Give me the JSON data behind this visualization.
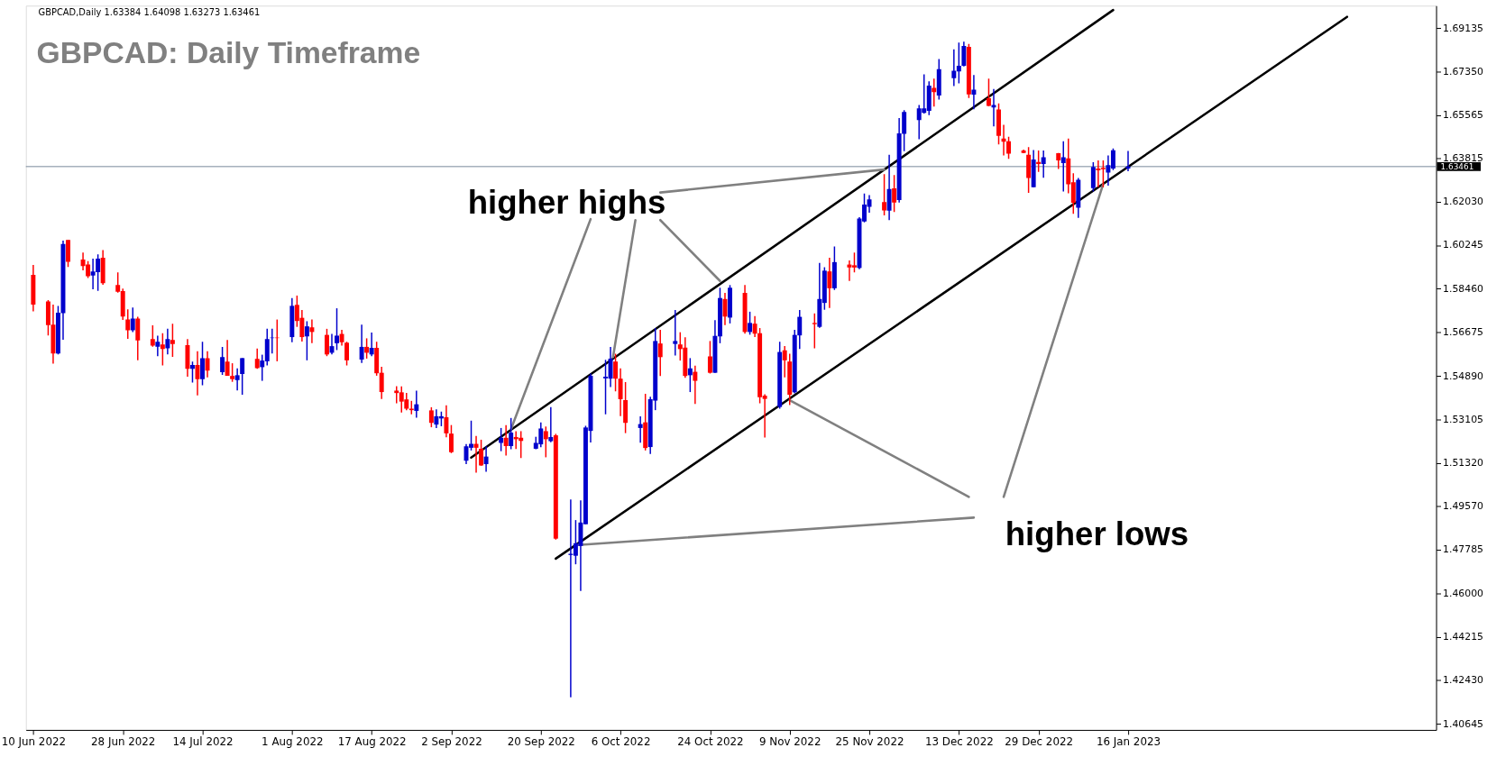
{
  "chart_data": {
    "type": "candlestick",
    "title": "GBPCAD: Daily Timeframe",
    "annotations": [
      "GBPCAD,Daily  1.63384 1.64098 1.63273 1.63461",
      "higher highs",
      "higher lows"
    ],
    "x": [
      "2022-06-10",
      "2022-06-13",
      "2022-06-14",
      "2022-06-15",
      "2022-06-16",
      "2022-06-17",
      "2022-06-20",
      "2022-06-21",
      "2022-06-22",
      "2022-06-23",
      "2022-06-24",
      "2022-06-27",
      "2022-06-28",
      "2022-06-29",
      "2022-06-30",
      "2022-07-01",
      "2022-07-04",
      "2022-07-05",
      "2022-07-06",
      "2022-07-07",
      "2022-07-08",
      "2022-07-11",
      "2022-07-12",
      "2022-07-13",
      "2022-07-14",
      "2022-07-15",
      "2022-07-18",
      "2022-07-19",
      "2022-07-20",
      "2022-07-21",
      "2022-07-22",
      "2022-07-25",
      "2022-07-26",
      "2022-07-27",
      "2022-07-28",
      "2022-07-29",
      "2022-08-01",
      "2022-08-02",
      "2022-08-03",
      "2022-08-04",
      "2022-08-05",
      "2022-08-08",
      "2022-08-09",
      "2022-08-10",
      "2022-08-11",
      "2022-08-12",
      "2022-08-15",
      "2022-08-16",
      "2022-08-17",
      "2022-08-18",
      "2022-08-19",
      "2022-08-22",
      "2022-08-23",
      "2022-08-24",
      "2022-08-25",
      "2022-08-26",
      "2022-08-29",
      "2022-08-30",
      "2022-08-31",
      "2022-09-01",
      "2022-09-02",
      "2022-09-05",
      "2022-09-06",
      "2022-09-07",
      "2022-09-08",
      "2022-09-09",
      "2022-09-12",
      "2022-09-13",
      "2022-09-14",
      "2022-09-15",
      "2022-09-16",
      "2022-09-19",
      "2022-09-20",
      "2022-09-21",
      "2022-09-22",
      "2022-09-23",
      "2022-09-26",
      "2022-09-27",
      "2022-09-28",
      "2022-09-29",
      "2022-09-30",
      "2022-10-03",
      "2022-10-04",
      "2022-10-05",
      "2022-10-06",
      "2022-10-07",
      "2022-10-10",
      "2022-10-11",
      "2022-10-12",
      "2022-10-13",
      "2022-10-14",
      "2022-10-17",
      "2022-10-18",
      "2022-10-19",
      "2022-10-20",
      "2022-10-21",
      "2022-10-24",
      "2022-10-25",
      "2022-10-26",
      "2022-10-27",
      "2022-10-28",
      "2022-10-31",
      "2022-11-01",
      "2022-11-02",
      "2022-11-03",
      "2022-11-04",
      "2022-11-07",
      "2022-11-08",
      "2022-11-09",
      "2022-11-10",
      "2022-11-11",
      "2022-11-14",
      "2022-11-15",
      "2022-11-16",
      "2022-11-17",
      "2022-11-18",
      "2022-11-21",
      "2022-11-22",
      "2022-11-23",
      "2022-11-24",
      "2022-11-25",
      "2022-11-28",
      "2022-11-29",
      "2022-11-30",
      "2022-12-01",
      "2022-12-02",
      "2022-12-05",
      "2022-12-06",
      "2022-12-07",
      "2022-12-08",
      "2022-12-09",
      "2022-12-12",
      "2022-12-13",
      "2022-12-14",
      "2022-12-15",
      "2022-12-16",
      "2022-12-19",
      "2022-12-20",
      "2022-12-21",
      "2022-12-22",
      "2022-12-23",
      "2022-12-26",
      "2022-12-27",
      "2022-12-28",
      "2022-12-29",
      "2022-12-30",
      "2023-01-02",
      "2023-01-03",
      "2023-01-04",
      "2023-01-05",
      "2023-01-06",
      "2023-01-09",
      "2023-01-10",
      "2023-01-11",
      "2023-01-12",
      "2023-01-13",
      "2023-01-16"
    ],
    "ohlc": [
      [
        1.5903,
        1.5943,
        1.5753,
        1.5781
      ],
      [
        1.5794,
        1.58,
        1.5655,
        1.5697
      ],
      [
        1.5699,
        1.5781,
        1.5539,
        1.5581
      ],
      [
        1.5581,
        1.5776,
        1.5577,
        1.5748
      ],
      [
        1.5746,
        1.6043,
        1.5637,
        1.6029
      ],
      [
        1.6046,
        1.6046,
        1.5935,
        1.5956
      ],
      [
        1.5966,
        1.5994,
        1.5921,
        1.5939
      ],
      [
        1.5945,
        1.5959,
        1.589,
        1.5897
      ],
      [
        1.59,
        1.5969,
        1.5844,
        1.5917
      ],
      [
        1.5914,
        1.5987,
        1.5837,
        1.5969
      ],
      [
        1.5973,
        1.6004,
        1.5862,
        1.5869
      ],
      [
        1.5861,
        1.5913,
        1.583,
        1.5834
      ],
      [
        1.5836,
        1.5847,
        1.5718,
        1.5732
      ],
      [
        1.572,
        1.5762,
        1.5641,
        1.5676
      ],
      [
        1.5676,
        1.5769,
        1.5669,
        1.5724
      ],
      [
        1.5724,
        1.5731,
        1.5553,
        1.5634
      ],
      [
        1.564,
        1.5696,
        1.5609,
        1.5613
      ],
      [
        1.5609,
        1.5654,
        1.557,
        1.5629
      ],
      [
        1.5618,
        1.5664,
        1.5532,
        1.5599
      ],
      [
        1.5602,
        1.5682,
        1.5577,
        1.564
      ],
      [
        1.5636,
        1.5703,
        1.5567,
        1.562
      ],
      [
        1.5615,
        1.564,
        1.5486,
        1.5518
      ],
      [
        1.5518,
        1.5548,
        1.5462,
        1.5534
      ],
      [
        1.5534,
        1.559,
        1.5409,
        1.5476
      ],
      [
        1.5476,
        1.5629,
        1.5451,
        1.5562
      ],
      [
        1.5562,
        1.559,
        1.5483,
        1.5511
      ],
      [
        1.5504,
        1.5608,
        1.5493,
        1.5566
      ],
      [
        1.5548,
        1.5636,
        1.549,
        1.549
      ],
      [
        1.5489,
        1.5541,
        1.5465,
        1.5476
      ],
      [
        1.5472,
        1.552,
        1.543,
        1.5492
      ],
      [
        1.5497,
        1.5562,
        1.5412,
        1.5562
      ],
      [
        1.5559,
        1.5601,
        1.5518,
        1.5521
      ],
      [
        1.5525,
        1.5576,
        1.5469,
        1.5552
      ],
      [
        1.5549,
        1.5682,
        1.5532,
        1.564
      ],
      [
        1.5644,
        1.5682,
        1.5581,
        1.5646
      ],
      [
        1.5646,
        1.572,
        1.5549,
        1.5644
      ],
      [
        1.5648,
        1.5808,
        1.5627,
        1.5776
      ],
      [
        1.578,
        1.5818,
        1.569,
        1.5714
      ],
      [
        1.5727,
        1.5759,
        1.563,
        1.5648
      ],
      [
        1.5651,
        1.5713,
        1.5553,
        1.5692
      ],
      [
        1.5688,
        1.572,
        1.5623,
        1.5669
      ],
      [
        1.5657,
        1.5682,
        1.557,
        1.5577
      ],
      [
        1.5584,
        1.5661,
        1.5577,
        1.5611
      ],
      [
        1.5623,
        1.5766,
        1.5595,
        1.5654
      ],
      [
        1.5661,
        1.5678,
        1.5613,
        1.5627
      ],
      [
        1.5625,
        1.5629,
        1.5532,
        1.5553
      ],
      [
        1.5556,
        1.5699,
        1.5542,
        1.5608
      ],
      [
        1.5608,
        1.5643,
        1.556,
        1.5584
      ],
      [
        1.5577,
        1.5667,
        1.557,
        1.5604
      ],
      [
        1.5604,
        1.5629,
        1.549,
        1.55
      ],
      [
        1.5502,
        1.5527,
        1.5395,
        1.5423
      ],
      [
        1.5429,
        1.5447,
        1.5377,
        1.5419
      ],
      [
        1.5422,
        1.5446,
        1.5339,
        1.5384
      ],
      [
        1.5393,
        1.542,
        1.5349,
        1.5355
      ],
      [
        1.5355,
        1.5387,
        1.5332,
        1.5349
      ],
      [
        1.5346,
        1.5429,
        1.5318,
        1.5373
      ],
      [
        1.5348,
        1.5361,
        1.5279,
        1.5297
      ],
      [
        1.529,
        1.5352,
        1.5276,
        1.5324
      ],
      [
        1.5315,
        1.5343,
        1.5283,
        1.5324
      ],
      [
        1.532,
        1.5369,
        1.5238,
        1.5254
      ],
      [
        1.5253,
        1.5288,
        1.5173,
        1.5177
      ],
      [
        1.5142,
        1.521,
        1.5128,
        1.5201
      ],
      [
        1.5195,
        1.5306,
        1.5184,
        1.5211
      ],
      [
        1.5211,
        1.5243,
        1.5093,
        1.5195
      ],
      [
        1.5191,
        1.5228,
        1.5121,
        1.5123
      ],
      [
        1.5128,
        1.5201,
        1.5097,
        1.5159
      ],
      [
        1.5215,
        1.5276,
        1.5181,
        1.5236
      ],
      [
        1.5236,
        1.5288,
        1.5163,
        1.5202
      ],
      [
        1.5202,
        1.5317,
        1.5189,
        1.5257
      ],
      [
        1.5239,
        1.5263,
        1.519,
        1.523
      ],
      [
        1.5236,
        1.5263,
        1.5153,
        1.5223
      ],
      [
        1.5191,
        1.524,
        1.5189,
        1.5215
      ],
      [
        1.5209,
        1.5299,
        1.5197,
        1.5274
      ],
      [
        1.5263,
        1.5282,
        1.5156,
        1.523
      ],
      [
        1.5222,
        1.5361,
        1.5218,
        1.5239
      ],
      [
        1.5246,
        1.5252,
        1.4819,
        1.4823
      ],
      [
        1.4756,
        1.4983,
        1.4174,
        1.4761
      ],
      [
        1.4753,
        1.4899,
        1.4718,
        1.4804
      ],
      [
        1.4793,
        1.498,
        1.4609,
        1.4889
      ],
      [
        1.4882,
        1.5285,
        1.4882,
        1.5278
      ],
      [
        1.5264,
        1.5499,
        1.5217,
        1.549
      ],
      [
        1.5479,
        1.5555,
        1.5332,
        1.5486
      ],
      [
        1.5478,
        1.5608,
        1.5444,
        1.556
      ],
      [
        1.5548,
        1.558,
        1.5426,
        1.5478
      ],
      [
        1.5478,
        1.552,
        1.5325,
        1.5394
      ],
      [
        1.539,
        1.5464,
        1.5255,
        1.5297
      ],
      [
        1.5276,
        1.5324,
        1.5216,
        1.5292
      ],
      [
        1.5299,
        1.5416,
        1.5184,
        1.5194
      ],
      [
        1.5198,
        1.5404,
        1.517,
        1.5394
      ],
      [
        1.5388,
        1.5685,
        1.5349,
        1.5632
      ],
      [
        1.5622,
        1.5678,
        1.5489,
        1.5566
      ],
      [
        1.562,
        1.5759,
        1.5573,
        1.5632
      ],
      [
        1.5618,
        1.5668,
        1.5552,
        1.5599
      ],
      [
        1.5605,
        1.5647,
        1.5481,
        1.5489
      ],
      [
        1.5492,
        1.5562,
        1.5423,
        1.552
      ],
      [
        1.5506,
        1.5531,
        1.5374,
        1.5469
      ],
      [
        1.5569,
        1.5632,
        1.5499,
        1.5502
      ],
      [
        1.5502,
        1.5717,
        1.5502,
        1.5653
      ],
      [
        1.5651,
        1.585,
        1.5623,
        1.5808
      ],
      [
        1.5804,
        1.5829,
        1.5697,
        1.5732
      ],
      [
        1.5728,
        1.5861,
        1.5704,
        1.585
      ],
      [
        1.5829,
        1.5861,
        1.5662,
        1.5669
      ],
      [
        1.5669,
        1.5752,
        1.5658,
        1.5706
      ],
      [
        1.5703,
        1.5734,
        1.5648,
        1.5662
      ],
      [
        1.5664,
        1.5685,
        1.5377,
        1.5402
      ],
      [
        1.5408,
        1.5414,
        1.5237,
        1.5395
      ],
      [
        1.5362,
        1.5629,
        1.5355,
        1.5587
      ],
      [
        1.5594,
        1.5611,
        1.5483,
        1.5553
      ],
      [
        1.5548,
        1.558,
        1.537,
        1.5412
      ],
      [
        1.5422,
        1.5678,
        1.5418,
        1.5657
      ],
      [
        1.5655,
        1.5759,
        1.5599,
        1.5731
      ],
      [
        1.5706,
        1.5745,
        1.5602,
        1.5701
      ],
      [
        1.569,
        1.5952,
        1.5686,
        1.5804
      ],
      [
        1.5788,
        1.5934,
        1.576,
        1.592
      ],
      [
        1.5917,
        1.5973,
        1.5767,
        1.5848
      ],
      [
        1.5848,
        1.6019,
        1.5841,
        1.5955
      ],
      [
        1.5945,
        1.5962,
        1.5878,
        1.5933
      ],
      [
        1.5942,
        1.5994,
        1.5913,
        1.5933
      ],
      [
        1.5931,
        1.6139,
        1.5926,
        1.6133
      ],
      [
        1.6121,
        1.6236,
        1.6118,
        1.6191
      ],
      [
        1.6181,
        1.6229,
        1.6157,
        1.6212
      ],
      [
        1.6201,
        1.6315,
        1.6146,
        1.6167
      ],
      [
        1.6166,
        1.6394,
        1.6127,
        1.6254
      ],
      [
        1.6257,
        1.6311,
        1.616,
        1.6199
      ],
      [
        1.6209,
        1.6545,
        1.6199,
        1.6482
      ],
      [
        1.648,
        1.6577,
        1.6409,
        1.657
      ],
      [
        1.6536,
        1.6598,
        1.6458,
        1.6584
      ],
      [
        1.6566,
        1.6724,
        1.6563,
        1.6584
      ],
      [
        1.6574,
        1.6695,
        1.6557,
        1.6678
      ],
      [
        1.6668,
        1.6706,
        1.6592,
        1.6651
      ],
      [
        1.6637,
        1.6786,
        1.662,
        1.6745
      ],
      [
        1.6708,
        1.6826,
        1.6676,
        1.6738
      ],
      [
        1.6736,
        1.6854,
        1.6687,
        1.6759
      ],
      [
        1.6759,
        1.6857,
        1.6756,
        1.684
      ],
      [
        1.6836,
        1.6848,
        1.6627,
        1.6642
      ],
      [
        1.6641,
        1.6721,
        1.6581,
        1.6661
      ],
      [
        1.6626,
        1.6706,
        1.6593,
        1.6595
      ],
      [
        1.6588,
        1.6664,
        1.6511,
        1.6598
      ],
      [
        1.658,
        1.6605,
        1.6437,
        1.6472
      ],
      [
        1.6461,
        1.6517,
        1.6392,
        1.6448
      ],
      [
        1.645,
        1.6468,
        1.6378,
        1.6399
      ],
      [
        1.6412,
        1.6416,
        1.6401,
        1.6402
      ],
      [
        1.6394,
        1.6426,
        1.6239,
        1.6299
      ],
      [
        1.6262,
        1.6414,
        1.6262,
        1.6375
      ],
      [
        1.6365,
        1.6412,
        1.6324,
        1.6357
      ],
      [
        1.6357,
        1.6412,
        1.63,
        1.6384
      ],
      [
        1.6401,
        1.6402,
        1.6336,
        1.6371
      ],
      [
        1.636,
        1.645,
        1.6244,
        1.6384
      ],
      [
        1.638,
        1.6461,
        1.6237,
        1.6274
      ],
      [
        1.6282,
        1.6319,
        1.6153,
        1.6198
      ],
      [
        1.6178,
        1.6299,
        1.6136,
        1.6292
      ],
      [
        1.6258,
        1.6364,
        1.6244,
        1.6345
      ],
      [
        1.6338,
        1.6371,
        1.6262,
        1.6331
      ],
      [
        1.6341,
        1.6371,
        1.6262,
        1.6335
      ],
      [
        1.6322,
        1.6392,
        1.6268,
        1.6352
      ],
      [
        1.6338,
        1.642,
        1.6332,
        1.6413
      ],
      [
        1.63384,
        1.64098,
        1.63273,
        1.63461
      ]
    ],
    "colors": [
      "#ff0000",
      "#ff0000",
      "#ff0000",
      "#0000cc",
      "#0000cc",
      "#ff0000",
      "#ff0000",
      "#ff0000",
      "#0000cc",
      "#0000cc",
      "#ff0000",
      "#ff0000",
      "#ff0000",
      "#ff0000",
      "#0000cc",
      "#ff0000",
      "#ff0000",
      "#0000cc",
      "#ff0000",
      "#0000cc",
      "#ff0000",
      "#ff0000",
      "#0000cc",
      "#ff0000",
      "#0000cc",
      "#ff0000",
      "#0000cc",
      "#ff0000",
      "#ff0000",
      "#0000cc",
      "#0000cc",
      "#ff0000",
      "#0000cc",
      "#0000cc",
      "#0000cc",
      "#ff0000",
      "#0000cc",
      "#ff0000",
      "#ff0000",
      "#0000cc",
      "#ff0000",
      "#ff0000",
      "#0000cc",
      "#0000cc",
      "#ff0000",
      "#ff0000",
      "#0000cc",
      "#ff0000",
      "#0000cc",
      "#ff0000",
      "#ff0000",
      "#ff0000",
      "#ff0000",
      "#ff0000",
      "#ff0000",
      "#0000cc",
      "#ff0000",
      "#0000cc",
      "#0000cc",
      "#ff0000",
      "#ff0000",
      "#0000cc",
      "#0000cc",
      "#ff0000",
      "#ff0000",
      "#0000cc",
      "#0000cc",
      "#ff0000",
      "#0000cc",
      "#ff0000",
      "#ff0000",
      "#0000cc",
      "#0000cc",
      "#ff0000",
      "#0000cc",
      "#ff0000",
      "#0000cc",
      "#0000cc",
      "#0000cc",
      "#0000cc",
      "#0000cc",
      "#0000cc",
      "#0000cc",
      "#ff0000",
      "#ff0000",
      "#ff0000",
      "#0000cc",
      "#ff0000",
      "#0000cc",
      "#0000cc",
      "#ff0000",
      "#0000cc",
      "#ff0000",
      "#ff0000",
      "#0000cc",
      "#ff0000",
      "#ff0000",
      "#0000cc",
      "#0000cc",
      "#ff0000",
      "#0000cc",
      "#ff0000",
      "#0000cc",
      "#ff0000",
      "#ff0000",
      "#ff0000",
      "#0000cc",
      "#ff0000",
      "#ff0000",
      "#0000cc",
      "#0000cc",
      "#ff0000",
      "#0000cc",
      "#0000cc",
      "#ff0000",
      "#0000cc",
      "#ff0000",
      "#ff0000",
      "#0000cc",
      "#0000cc",
      "#0000cc",
      "#ff0000",
      "#0000cc",
      "#ff0000",
      "#0000cc",
      "#0000cc",
      "#0000cc",
      "#0000cc",
      "#0000cc",
      "#ff0000",
      "#0000cc",
      "#0000cc",
      "#0000cc",
      "#0000cc",
      "#ff0000",
      "#0000cc",
      "#ff0000",
      "#0000cc",
      "#ff0000",
      "#ff0000",
      "#ff0000",
      "#ff0000",
      "#ff0000",
      "#0000cc",
      "#ff0000",
      "#0000cc",
      "#ff0000",
      "#0000cc",
      "#ff0000",
      "#ff0000",
      "#0000cc",
      "#0000cc",
      "#ff0000",
      "#ff0000",
      "#0000cc",
      "#0000cc",
      "#0000cc"
    ],
    "series": [
      {
        "type": "line",
        "color": "#000000",
        "x": [
          "2022-09-06",
          "2023-01-13"
        ],
        "values": [
          1.5155,
          1.6987
        ]
      },
      {
        "type": "line",
        "color": "#000000",
        "x": [
          "2022-09-23",
          "2023-03-01"
        ],
        "values": [
          1.4741,
          1.6959
        ]
      },
      {
        "type": "line",
        "color": "#808080",
        "x": [
          "2022-10-14",
          "2022-11-28"
        ],
        "values": [
          1.624,
          1.6334
        ]
      },
      {
        "type": "line",
        "color": "#808080",
        "x": [
          "2022-09-30",
          "2022-09-14"
        ],
        "values": [
          1.6131,
          1.5271
        ]
      },
      {
        "type": "line",
        "color": "#808080",
        "x": [
          "2022-10-09",
          "2022-10-04T12:00"
        ],
        "values": [
          1.6127,
          1.5566
        ]
      },
      {
        "type": "line",
        "color": "#808080",
        "x": [
          "2022-10-14",
          "2022-10-26"
        ],
        "values": [
          1.6127,
          1.5878
        ]
      },
      {
        "type": "line",
        "color": "#808080",
        "x": [
          "2022-12-16",
          "2022-09-27T12:00"
        ],
        "values": [
          1.4909,
          1.4797
        ]
      },
      {
        "type": "line",
        "color": "#808080",
        "x": [
          "2022-12-15",
          "2022-11-09"
        ],
        "values": [
          1.4994,
          1.539
        ]
      },
      {
        "type": "line",
        "color": "#808080",
        "x": [
          "2022-12-22",
          "2023-01-11"
        ],
        "values": [
          1.4994,
          1.6275
        ]
      }
    ],
    "ref_lines": [
      {
        "axis": "y",
        "value": 1.63461,
        "label": "1.63461",
        "color": "#778899"
      }
    ],
    "xlim": [
      "2022-06-09T10:00",
      "2023-03-18"
    ],
    "xticks": [
      {
        "value": "2022-06-10",
        "label": "10 Jun 2022"
      },
      {
        "value": "2022-06-28",
        "label": "28 Jun 2022"
      },
      {
        "value": "2022-07-14",
        "label": "14 Jul 2022"
      },
      {
        "value": "2022-08-01",
        "label": "1 Aug 2022"
      },
      {
        "value": "2022-08-17",
        "label": "17 Aug 2022"
      },
      {
        "value": "2022-09-02",
        "label": "2 Sep 2022"
      },
      {
        "value": "2022-09-20",
        "label": "20 Sep 2022"
      },
      {
        "value": "2022-10-06",
        "label": "6 Oct 2022"
      },
      {
        "value": "2022-10-24",
        "label": "24 Oct 2022"
      },
      {
        "value": "2022-11-09",
        "label": "9 Nov 2022"
      },
      {
        "value": "2022-11-25",
        "label": "25 Nov 2022"
      },
      {
        "value": "2022-12-13",
        "label": "13 Dec 2022"
      },
      {
        "value": "2022-12-29",
        "label": "29 Dec 2022"
      },
      {
        "value": "2023-01-16",
        "label": "16 Jan 2023"
      }
    ],
    "ylim": [
      1.404,
      1.7005
    ],
    "yticks": [
      1.40645,
      {
        "value": 1.4243,
        "label": "1.42430"
      },
      1.44215,
      {
        "value": 1.46,
        "label": "1.46000"
      },
      1.47785,
      {
        "value": 1.4957,
        "label": "1.49570"
      },
      {
        "value": 1.5132,
        "label": "1.51320"
      },
      1.53105,
      {
        "value": 1.5489,
        "label": "1.54890"
      },
      1.56675,
      {
        "value": 1.5846,
        "label": "1.58460"
      },
      1.60245,
      {
        "value": 1.6203,
        "label": "1.62030"
      },
      1.63815,
      1.65565,
      {
        "value": 1.6735,
        "label": "1.67350"
      },
      1.69135
    ],
    "grid": false
  }
}
